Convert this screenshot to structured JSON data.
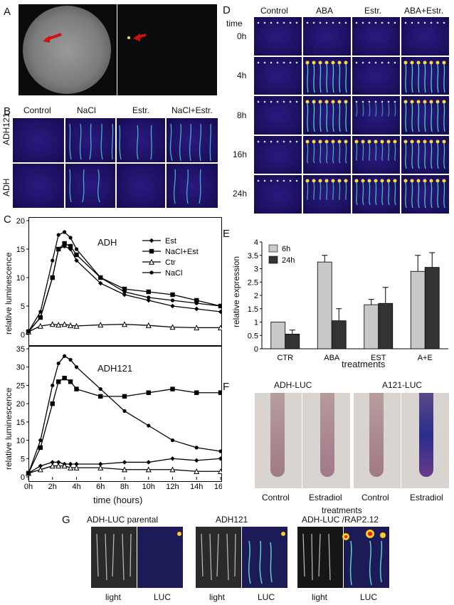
{
  "panels": {
    "A": "A",
    "B": "B",
    "C": "C",
    "D": "D",
    "E": "E",
    "F": "F",
    "G": "G"
  },
  "panel_b": {
    "columns": [
      "Control",
      "NaCl",
      "Estr.",
      "NaCl+Estr."
    ],
    "rows": [
      "ADH121",
      "ADH"
    ]
  },
  "panel_d": {
    "columns": [
      "Control",
      "ABA",
      "Estr.",
      "ABA+Estr."
    ],
    "time_header": "time",
    "rows": [
      "0h",
      "4h",
      "8h",
      "16h",
      "24h"
    ]
  },
  "panel_f": {
    "headers": [
      "ADH-LUC",
      "A121-LUC"
    ],
    "labels": [
      "Control",
      "Estradiol",
      "Control",
      "Estradiol"
    ],
    "xlabel": "treatments"
  },
  "panel_g": {
    "headers": [
      "ADH-LUC parental",
      "ADH121",
      "ADH-LUC /RAP2.12"
    ],
    "labels": [
      "light",
      "LUC",
      "light",
      "LUC",
      "light",
      "LUC"
    ]
  },
  "colors": {
    "fluo_bg": "#1c1060",
    "bar_6h": "#c8c8c8",
    "bar_24h": "#333333",
    "line": "#000000"
  },
  "chart_data": [
    {
      "type": "line",
      "panel": "C-top",
      "title": "ADH",
      "ylabel": "relative luminescence",
      "ylim": [
        0,
        20
      ],
      "yticks": [
        0,
        5,
        10,
        15,
        20
      ],
      "legend": [
        "Est",
        "NaCl+Est",
        "Ctr",
        "NaCl"
      ],
      "legend_position": "top-right",
      "x": [
        0,
        1,
        2,
        2.5,
        3,
        3.5,
        4,
        6,
        8,
        10,
        12,
        14,
        16
      ],
      "series": [
        {
          "name": "Est",
          "marker": "diamond",
          "values": [
            0.5,
            3,
            10,
            15,
            15.5,
            15,
            13,
            9,
            7,
            6,
            5,
            4.5,
            4
          ]
        },
        {
          "name": "NaCl+Est",
          "marker": "square",
          "values": [
            0.5,
            3,
            10,
            15,
            16,
            15.5,
            14,
            10,
            8,
            7.5,
            7,
            6,
            5
          ]
        },
        {
          "name": "Ctr",
          "marker": "triangle",
          "values": [
            0.5,
            1.5,
            1.8,
            1.7,
            1.8,
            1.6,
            1.5,
            1.7,
            1.8,
            1.6,
            1.3,
            1.2,
            1.2
          ]
        },
        {
          "name": "NaCl",
          "marker": "circle",
          "values": [
            0.5,
            4,
            13,
            17.5,
            18,
            17,
            15,
            10,
            7.5,
            6.5,
            6,
            5.5,
            5
          ]
        }
      ]
    },
    {
      "type": "line",
      "panel": "C-bottom",
      "title": "ADH121",
      "ylabel": "relative luminescence",
      "xlabel": "time (hours)",
      "ylim": [
        0,
        35
      ],
      "yticks": [
        0,
        5,
        10,
        15,
        20,
        25,
        30,
        35
      ],
      "xticks": [
        "0h",
        "2h",
        "4h",
        "6h",
        "8h",
        "10h",
        "12h",
        "14h",
        "16h"
      ],
      "x": [
        0,
        1,
        2,
        2.5,
        3,
        3.5,
        4,
        6,
        8,
        10,
        12,
        14,
        16
      ],
      "series": [
        {
          "name": "Est",
          "marker": "diamond",
          "values": [
            1,
            3,
            4,
            4,
            3.5,
            3.5,
            3.5,
            3.5,
            4,
            4,
            5,
            4.5,
            5
          ]
        },
        {
          "name": "NaCl+Est",
          "marker": "square",
          "values": [
            1,
            8,
            20,
            26,
            27,
            26,
            24,
            22,
            22,
            23,
            24,
            23,
            23
          ]
        },
        {
          "name": "Ctr",
          "marker": "triangle",
          "values": [
            1,
            2,
            3,
            3,
            3,
            2.5,
            2.5,
            2.5,
            2,
            2,
            2,
            1.5,
            1.5
          ]
        },
        {
          "name": "NaCl",
          "marker": "circle",
          "values": [
            1,
            10,
            25,
            31,
            33,
            32,
            30,
            24,
            18,
            14,
            10,
            8,
            7
          ]
        }
      ]
    },
    {
      "type": "bar",
      "panel": "E",
      "ylabel": "relative expression",
      "xlabel": "treatments",
      "ylim": [
        0,
        4
      ],
      "yticks": [
        0,
        0.5,
        1,
        1.5,
        2,
        2.5,
        3,
        3.5,
        4
      ],
      "legend": [
        "6h",
        "24h"
      ],
      "categories": [
        "CTR",
        "ABA",
        "EST",
        "A+E"
      ],
      "series": [
        {
          "name": "6h",
          "values": [
            1.0,
            3.25,
            1.65,
            2.9
          ],
          "errors": [
            0,
            0.25,
            0.2,
            0.6
          ]
        },
        {
          "name": "24h",
          "values": [
            0.55,
            1.05,
            1.7,
            3.05
          ],
          "errors": [
            0.15,
            0.45,
            0.6,
            0.55
          ]
        }
      ]
    }
  ]
}
